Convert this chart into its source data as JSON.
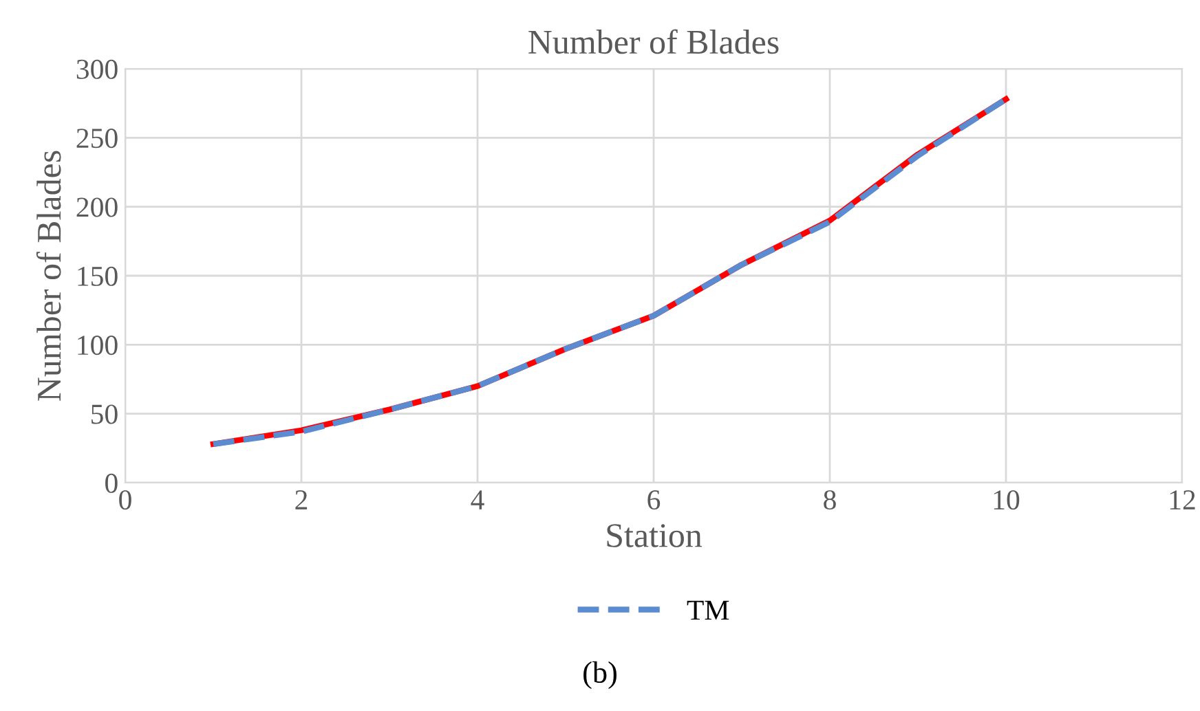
{
  "chart_data": {
    "type": "line",
    "title": "Number of Blades",
    "xlabel": "Station",
    "ylabel": "Number of Blades",
    "x": [
      1,
      2,
      3,
      4,
      5,
      6,
      7,
      8,
      9,
      10
    ],
    "series": [
      {
        "color": "#ff0000",
        "line_style": "solid",
        "values": [
          28,
          38,
          53,
          70,
          97,
          121,
          158,
          190,
          238,
          278
        ]
      },
      {
        "name": "TM",
        "color": "#5b8bd0",
        "line_style": "dashed",
        "values": [
          28,
          37,
          53,
          70,
          97,
          121,
          158,
          189,
          237,
          278
        ]
      }
    ],
    "xlim": [
      0,
      12
    ],
    "xticks": [
      0,
      2,
      4,
      6,
      8,
      10,
      12
    ],
    "ylim": [
      0,
      300
    ],
    "yticks": [
      0,
      50,
      100,
      150,
      200,
      250,
      300
    ],
    "grid": true,
    "legend": "bottom",
    "marker": "none",
    "annotations": [
      "(b)"
    ]
  }
}
